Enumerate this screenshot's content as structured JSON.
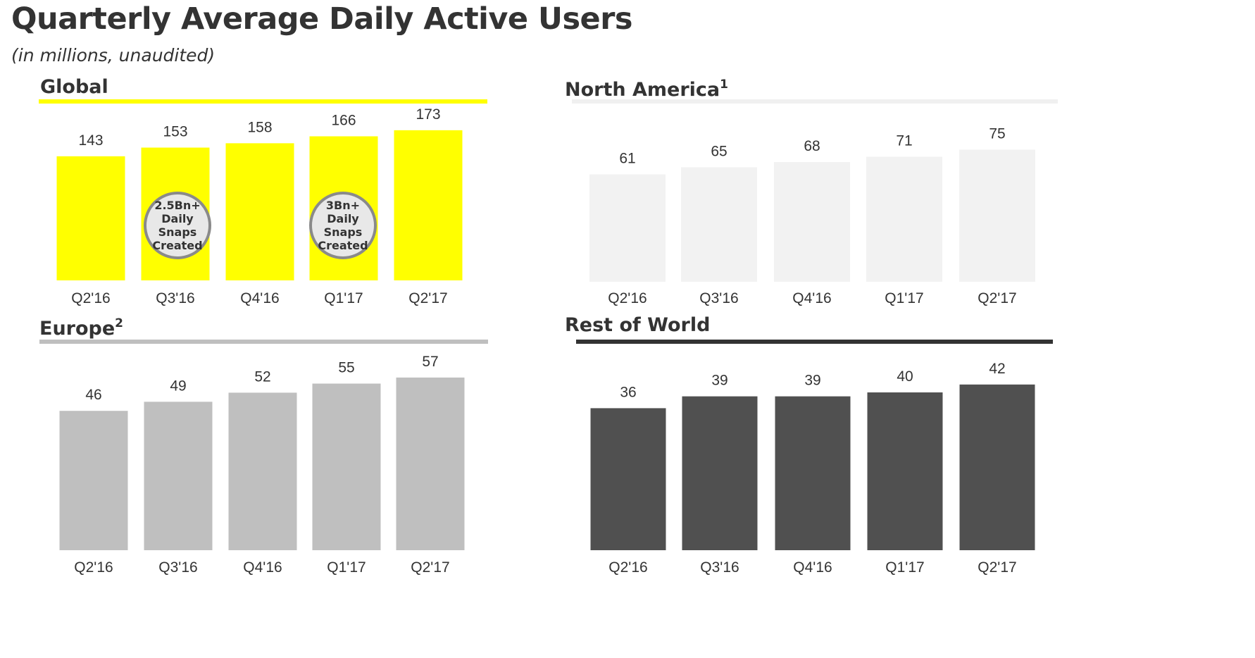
{
  "header": {
    "title": "Quarterly Average Daily Active Users",
    "subtitle": "(in millions, unaudited)"
  },
  "panels": [
    {
      "id": "global",
      "label": "Global",
      "superscript": "",
      "bar_color": "#ffff00",
      "rule_color": "#ffff00"
    },
    {
      "id": "north_america",
      "label": "North America",
      "superscript": "1",
      "bar_color": "#f2f2f2",
      "rule_color": "#f0f0f0"
    },
    {
      "id": "europe",
      "label": "Europe",
      "superscript": "2",
      "bar_color": "#bfbfbf",
      "rule_color": "#bfbfbf"
    },
    {
      "id": "rest_of_world",
      "label": "Rest of World",
      "superscript": "",
      "bar_color": "#505050",
      "rule_color": "#333333"
    }
  ],
  "badges": [
    {
      "lines": [
        "2.5Bn+",
        "Daily",
        "Snaps",
        "Created"
      ]
    },
    {
      "lines": [
        "3Bn+",
        "Daily",
        "Snaps",
        "Created"
      ]
    }
  ],
  "chart_data": [
    {
      "type": "bar",
      "title": "Global",
      "categories": [
        "Q2'16",
        "Q3'16",
        "Q4'16",
        "Q1'17",
        "Q2'17"
      ],
      "values": [
        143,
        153,
        158,
        166,
        173
      ],
      "annotations": [
        {
          "category": "Q3'16",
          "text": "2.5Bn+ Daily Snaps Created"
        },
        {
          "category": "Q1'17",
          "text": "3Bn+ Daily Snaps Created"
        }
      ]
    },
    {
      "type": "bar",
      "title": "North America",
      "categories": [
        "Q2'16",
        "Q3'16",
        "Q4'16",
        "Q1'17",
        "Q2'17"
      ],
      "values": [
        61,
        65,
        68,
        71,
        75
      ]
    },
    {
      "type": "bar",
      "title": "Europe",
      "categories": [
        "Q2'16",
        "Q3'16",
        "Q4'16",
        "Q1'17",
        "Q2'17"
      ],
      "values": [
        46,
        49,
        52,
        55,
        57
      ]
    },
    {
      "type": "bar",
      "title": "Rest of World",
      "categories": [
        "Q2'16",
        "Q3'16",
        "Q4'16",
        "Q1'17",
        "Q2'17"
      ],
      "values": [
        36,
        39,
        39,
        40,
        42
      ]
    }
  ]
}
